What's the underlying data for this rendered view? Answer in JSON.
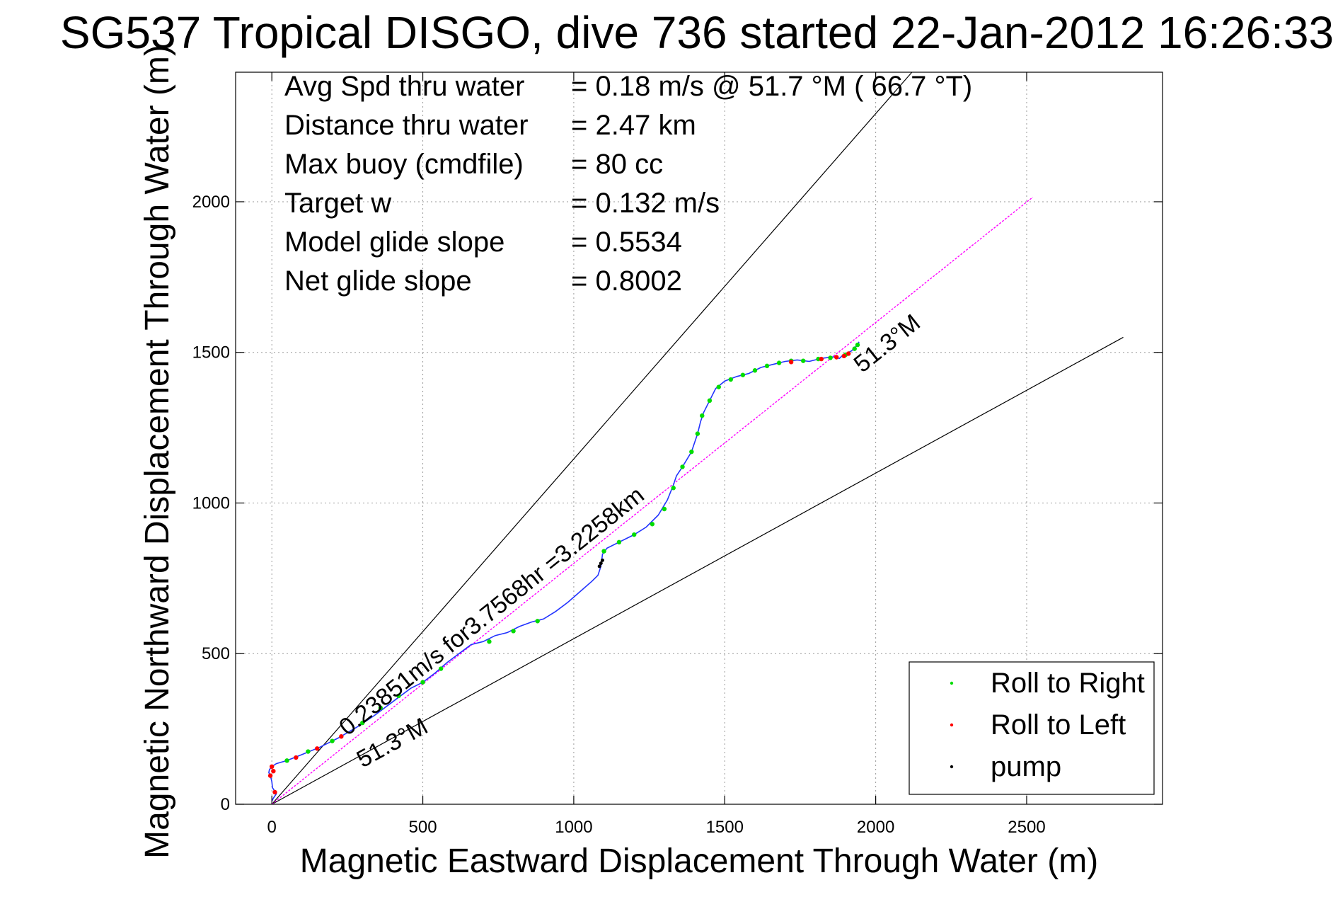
{
  "chart_data": {
    "type": "line",
    "title": "SG537 Tropical DISGO, dive 736 started 22-Jan-2012 16:26:33",
    "xlabel": "Magnetic Eastward Displacement Through Water (m)",
    "ylabel": "Magnetic Northward Displacement Through Water (m)",
    "xlim": [
      -120,
      2950
    ],
    "ylim": [
      0,
      2430
    ],
    "xticks": [
      0,
      500,
      1000,
      1500,
      2000,
      2500
    ],
    "yticks": [
      0,
      500,
      1000,
      1500,
      2000
    ],
    "grid": true,
    "legend_position": "bottom-right",
    "stats": [
      {
        "label": "Avg Spd thru water",
        "value": "=  0.18 m/s @  51.7 °M ( 66.7 °T)"
      },
      {
        "label": "Distance thru water",
        "value": "=  2.47 km"
      },
      {
        "label": "Max buoy (cmdfile)",
        "value": "= 80 cc"
      },
      {
        "label": "Target w",
        "value": "= 0.132 m/s"
      },
      {
        "label": "Model glide slope",
        "value": "= 0.5534"
      },
      {
        "label": "Net glide slope",
        "value": "= 0.8002"
      }
    ],
    "legend": [
      {
        "label": "Roll to Right",
        "color": "#00dd00"
      },
      {
        "label": "Roll to Left",
        "color": "#ff0000"
      },
      {
        "label": "pump",
        "color": "#000000"
      }
    ],
    "track": {
      "color": "#2233ff",
      "x": [
        0,
        5,
        15,
        2,
        0,
        -5,
        -10,
        -8,
        0,
        15,
        50,
        100,
        160,
        220,
        280,
        340,
        400,
        460,
        500,
        540,
        580,
        620,
        660,
        700,
        740,
        780,
        820,
        860,
        900,
        940,
        980,
        1020,
        1060,
        1080,
        1090,
        1095,
        1110,
        1150,
        1200,
        1240,
        1280,
        1310,
        1330,
        1340,
        1360,
        1390,
        1410,
        1420,
        1430,
        1450,
        1470,
        1500,
        1540,
        1580,
        1620,
        1660,
        1700,
        1740,
        1780,
        1820,
        1860,
        1880,
        1890,
        1920,
        1935,
        1945
      ],
      "y": [
        10,
        20,
        35,
        55,
        75,
        95,
        105,
        115,
        125,
        135,
        145,
        165,
        190,
        220,
        255,
        295,
        340,
        385,
        405,
        435,
        470,
        500,
        530,
        540,
        560,
        570,
        590,
        605,
        615,
        640,
        670,
        705,
        740,
        760,
        790,
        830,
        850,
        870,
        895,
        920,
        960,
        1010,
        1060,
        1090,
        1120,
        1170,
        1230,
        1270,
        1300,
        1340,
        1380,
        1405,
        1420,
        1430,
        1450,
        1460,
        1470,
        1475,
        1470,
        1480,
        1485,
        1480,
        1490,
        1505,
        1520,
        1535
      ]
    },
    "roll_right": [
      [
        50,
        145
      ],
      [
        120,
        175
      ],
      [
        200,
        210
      ],
      [
        300,
        270
      ],
      [
        360,
        320
      ],
      [
        420,
        360
      ],
      [
        500,
        405
      ],
      [
        560,
        450
      ],
      [
        720,
        540
      ],
      [
        800,
        575
      ],
      [
        880,
        608
      ],
      [
        1100,
        840
      ],
      [
        1150,
        870
      ],
      [
        1200,
        895
      ],
      [
        1260,
        930
      ],
      [
        1300,
        980
      ],
      [
        1330,
        1050
      ],
      [
        1360,
        1120
      ],
      [
        1390,
        1170
      ],
      [
        1410,
        1230
      ],
      [
        1425,
        1290
      ],
      [
        1450,
        1340
      ],
      [
        1480,
        1385
      ],
      [
        1520,
        1410
      ],
      [
        1560,
        1425
      ],
      [
        1600,
        1440
      ],
      [
        1640,
        1455
      ],
      [
        1680,
        1465
      ],
      [
        1720,
        1472
      ],
      [
        1760,
        1472
      ],
      [
        1810,
        1478
      ],
      [
        1850,
        1482
      ],
      [
        1900,
        1492
      ],
      [
        1930,
        1512
      ],
      [
        1940,
        1525
      ]
    ],
    "roll_left": [
      [
        0,
        125
      ],
      [
        5,
        110
      ],
      [
        -5,
        95
      ],
      [
        10,
        40
      ],
      [
        80,
        155
      ],
      [
        150,
        185
      ],
      [
        230,
        225
      ],
      [
        1720,
        1468
      ],
      [
        1820,
        1478
      ],
      [
        1870,
        1484
      ],
      [
        1910,
        1496
      ],
      [
        1895,
        1488
      ]
    ],
    "pump": [
      [
        1085,
        790
      ],
      [
        1090,
        800
      ],
      [
        1095,
        810
      ]
    ],
    "center_line": {
      "color": "#ff00ff",
      "heading_label": "51.3°M",
      "annotation": "0.23851m/s for3.7568hr =3.2258km",
      "end": [
        2520,
        2015
      ]
    },
    "bound_lines": [
      {
        "end": [
          2120,
          2460
        ]
      },
      {
        "end": [
          2820,
          1550
        ],
        "label": "51.3°M"
      }
    ]
  }
}
